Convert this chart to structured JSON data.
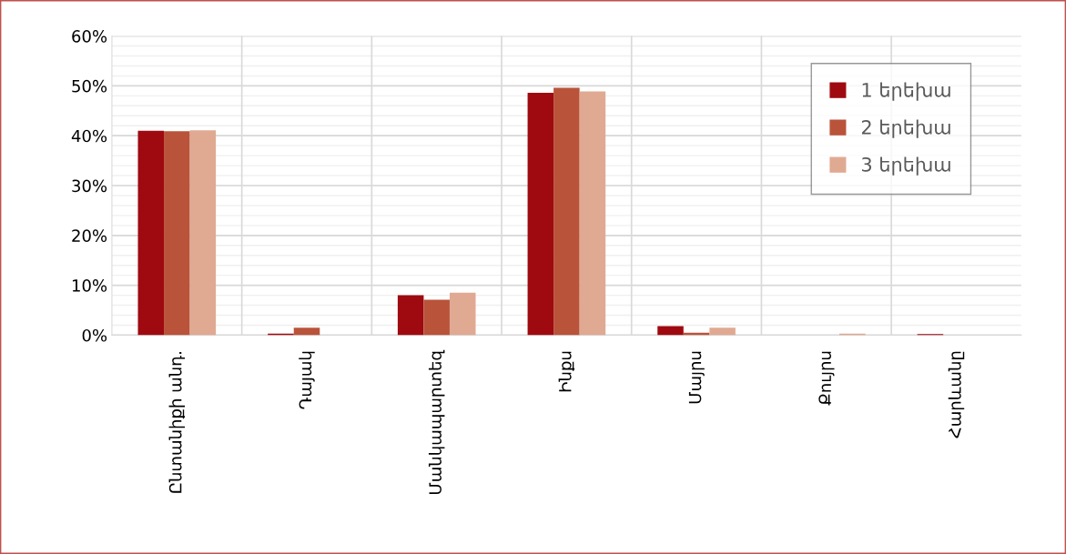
{
  "chart_data": {
    "type": "bar",
    "categories": [
      "Ընտանիքի անդ.",
      "Դայակ",
      "Մանկապարտեզ",
      "Ինքս",
      "Մայրս",
      "Քույրս",
      "Հարևանը"
    ],
    "series": [
      {
        "name": "1 երեխա",
        "color": "#9e0a10",
        "values": [
          41.0,
          0.3,
          8.0,
          48.6,
          1.8,
          0,
          0.2
        ]
      },
      {
        "name": "2 երեխա",
        "color": "#b9533a",
        "values": [
          40.9,
          1.5,
          7.1,
          49.6,
          0.5,
          0,
          0
        ]
      },
      {
        "name": "3 երեխա",
        "color": "#e0a992",
        "values": [
          41.1,
          0,
          8.5,
          48.9,
          1.5,
          0.3,
          0
        ]
      }
    ],
    "ylim": [
      0,
      60
    ],
    "yticks": [
      {
        "value": 0,
        "label": "0%"
      },
      {
        "value": 10,
        "label": "10%"
      },
      {
        "value": 20,
        "label": "20%"
      },
      {
        "value": 30,
        "label": "30%"
      },
      {
        "value": 40,
        "label": "40%"
      },
      {
        "value": 50,
        "label": "50%"
      },
      {
        "value": 60,
        "label": "60%"
      }
    ],
    "grid": true,
    "legend": "top right"
  }
}
